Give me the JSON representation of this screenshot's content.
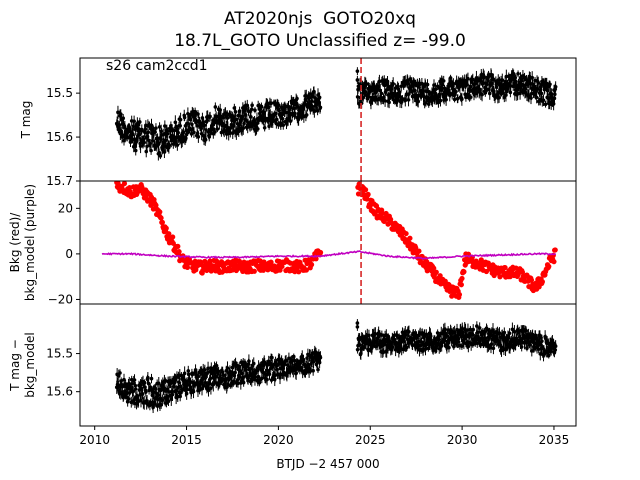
{
  "title_line1": "AT2020njs  GOTO20xq",
  "title_line2": "18.7L_GOTO Unclassified z= -99.0",
  "annotation": "s26 cam2ccd1",
  "xlabel": "BTJD −2 457 000",
  "colors": {
    "flux": "#000000",
    "bkg": "#ff0000",
    "bkg_model": "#c000c0",
    "marker": "#d62728"
  },
  "chart_data": [
    {
      "type": "scatter",
      "panel": "top",
      "ylabel": "T mag",
      "ylim": [
        15.7,
        15.42
      ],
      "yticks": [
        "15.5",
        "15.6",
        "15.7"
      ],
      "ytick_values": [
        15.5,
        15.6,
        15.7
      ],
      "xlim": [
        2009.2,
        2036.2
      ],
      "xticks": [
        "2010",
        "2015",
        "2020",
        "2025",
        "2030",
        "2035"
      ],
      "xtick_values": [
        2010,
        2015,
        2020,
        2025,
        2030,
        2035
      ],
      "vline_x": 2024.5,
      "series": [
        {
          "x": [
            2011.2,
            2011.8,
            2012.4,
            2013.0,
            2013.6,
            2014.2,
            2014.8,
            2015.4,
            2016.0,
            2016.6,
            2017.2,
            2017.8,
            2018.4,
            2019.0,
            2019.6,
            2020.2,
            2020.8,
            2021.4,
            2022.0,
            2024.9,
            2025.5,
            2026.1,
            2026.7,
            2027.3,
            2027.9,
            2028.5,
            2029.1,
            2029.7,
            2030.3,
            2030.9,
            2031.5,
            2032.1,
            2032.7,
            2033.3,
            2033.9,
            2034.5,
            2035.1
          ],
          "y": [
            15.56,
            15.59,
            15.6,
            15.6,
            15.61,
            15.6,
            15.58,
            15.57,
            15.58,
            15.56,
            15.57,
            15.56,
            15.55,
            15.56,
            15.55,
            15.55,
            15.54,
            15.53,
            15.52,
            15.5,
            15.49,
            15.5,
            15.5,
            15.49,
            15.5,
            15.5,
            15.49,
            15.49,
            15.49,
            15.48,
            15.48,
            15.49,
            15.48,
            15.48,
            15.49,
            15.5,
            15.51
          ],
          "scatter": [
            0.03,
            0.03,
            0.035,
            0.035,
            0.035,
            0.03,
            0.03,
            0.03,
            0.03,
            0.03,
            0.03,
            0.03,
            0.03,
            0.03,
            0.03,
            0.025,
            0.025,
            0.025,
            0.025,
            0.025,
            0.025,
            0.025,
            0.025,
            0.025,
            0.025,
            0.025,
            0.025,
            0.025,
            0.025,
            0.025,
            0.025,
            0.025,
            0.025,
            0.025,
            0.025,
            0.025,
            0.025
          ]
        }
      ]
    },
    {
      "type": "scatter",
      "panel": "middle",
      "ylabel": "Bkg (red)/\nbkg_model (purple)",
      "ylim": [
        -22,
        32
      ],
      "yticks": [
        "20",
        "0",
        "−20"
      ],
      "ytick_values": [
        20,
        0,
        -20
      ],
      "xlim": [
        2009.2,
        2036.2
      ],
      "vline_x": 2024.5,
      "series": [
        {
          "name": "Bkg",
          "x": [
            2011.2,
            2011.6,
            2012.0,
            2012.4,
            2012.8,
            2013.2,
            2013.6,
            2014.0,
            2014.4,
            2014.8,
            2015.2,
            2015.8,
            2016.4,
            2017.0,
            2017.6,
            2018.2,
            2018.8,
            2019.4,
            2020.0,
            2020.6,
            2021.2,
            2021.8,
            2022.2,
            2024.2,
            2024.6,
            2025.0,
            2025.4,
            2025.8,
            2026.2,
            2026.6,
            2027.0,
            2027.4,
            2027.8,
            2028.2,
            2028.6,
            2029.0,
            2029.4,
            2029.8,
            2030.2,
            2030.8,
            2031.4,
            2032.0,
            2032.6,
            2033.2,
            2033.6,
            2034.0,
            2034.4,
            2034.8,
            2035.1
          ],
          "y": [
            30,
            29,
            27,
            29,
            26,
            22,
            15,
            8,
            3,
            -3,
            -5,
            -6,
            -5,
            -6,
            -5,
            -6,
            -5,
            -6,
            -5,
            -5,
            -6,
            -4,
            0,
            29,
            28,
            22,
            18,
            16,
            13,
            10,
            6,
            2,
            -3,
            -6,
            -10,
            -14,
            -16,
            -18,
            -2,
            -4,
            -6,
            -8,
            -8,
            -9,
            -12,
            -15,
            -10,
            -3,
            0
          ]
        },
        {
          "name": "bkg_model",
          "x": [
            2010.4,
            2012.0,
            2014.0,
            2016.0,
            2018.0,
            2020.0,
            2022.2,
            2024.4,
            2026.0,
            2028.0,
            2030.0,
            2032.0,
            2034.0,
            2035.1
          ],
          "y": [
            0,
            0,
            -1,
            -1.5,
            -1.5,
            -1,
            -1,
            1,
            -1,
            -2,
            -1,
            -0.5,
            0,
            0
          ]
        }
      ]
    },
    {
      "type": "scatter",
      "panel": "bottom",
      "ylabel": "T mag −\nbkg_model",
      "ylim": [
        15.69,
        15.37
      ],
      "yticks": [
        "15.5",
        "15.6"
      ],
      "ytick_values": [
        15.5,
        15.6
      ],
      "xlim": [
        2009.2,
        2036.2
      ],
      "series": [
        {
          "x": [
            2011.2,
            2011.8,
            2012.4,
            2013.0,
            2013.6,
            2014.2,
            2014.8,
            2015.4,
            2016.0,
            2016.6,
            2017.2,
            2017.8,
            2018.4,
            2019.0,
            2019.6,
            2020.2,
            2020.8,
            2021.4,
            2022.0,
            2024.9,
            2025.5,
            2026.1,
            2026.7,
            2027.3,
            2027.9,
            2028.5,
            2029.1,
            2029.7,
            2030.3,
            2030.9,
            2031.5,
            2032.1,
            2032.7,
            2033.3,
            2033.9,
            2034.5,
            2035.1
          ],
          "y": [
            15.57,
            15.6,
            15.6,
            15.6,
            15.61,
            15.59,
            15.58,
            15.57,
            15.57,
            15.56,
            15.56,
            15.55,
            15.55,
            15.55,
            15.54,
            15.54,
            15.53,
            15.53,
            15.52,
            15.47,
            15.47,
            15.48,
            15.47,
            15.46,
            15.47,
            15.47,
            15.46,
            15.46,
            15.46,
            15.45,
            15.46,
            15.47,
            15.46,
            15.46,
            15.47,
            15.48,
            15.49
          ],
          "scatter": [
            0.03,
            0.03,
            0.035,
            0.04,
            0.035,
            0.03,
            0.03,
            0.03,
            0.03,
            0.03,
            0.03,
            0.03,
            0.03,
            0.03,
            0.03,
            0.025,
            0.025,
            0.025,
            0.025,
            0.025,
            0.025,
            0.025,
            0.025,
            0.025,
            0.025,
            0.025,
            0.025,
            0.025,
            0.025,
            0.025,
            0.025,
            0.025,
            0.025,
            0.025,
            0.025,
            0.025,
            0.025
          ]
        }
      ]
    }
  ]
}
